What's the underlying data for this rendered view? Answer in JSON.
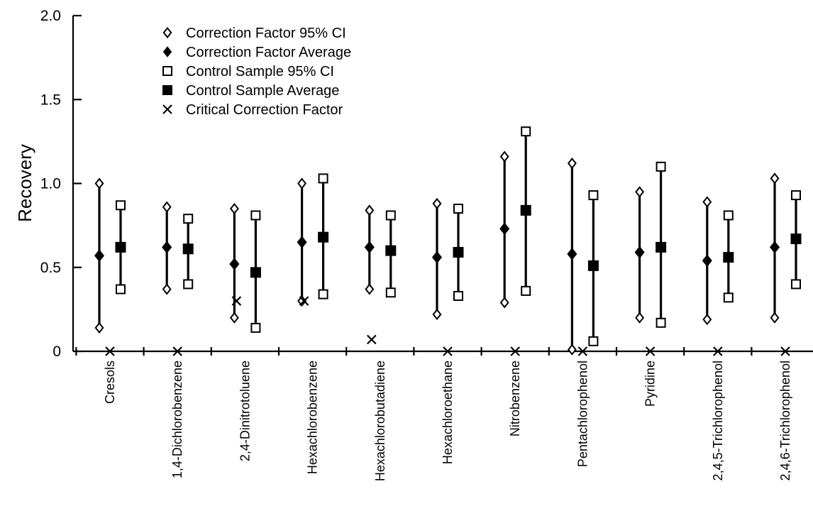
{
  "chart_data": {
    "type": "scatter",
    "title": "",
    "xlabel": "",
    "ylabel": "Recovery",
    "ylim": [
      0,
      2.0
    ],
    "yticks": [
      0,
      0.5,
      1.0,
      1.5,
      2.0
    ],
    "ytick_labels": [
      "0",
      "0.5",
      "1.0",
      "1.5",
      "2.0"
    ],
    "grid": false,
    "legend_position": "top-left",
    "categories": [
      "Cresols",
      "1,4-Dichlorobenzene",
      "2,4-Dinitrotoluene",
      "Hexachlorobenzene",
      "Hexachlorobutadiene",
      "Hexachloroethane",
      "Nitrobenzene",
      "Pentachlorophenol",
      "Pyridine",
      "2,4,5-Trichlorophenol",
      "2,4,6-Trichlorophenol"
    ],
    "series": [
      {
        "name": "Correction Factor 95% CI",
        "marker": "open-diamond",
        "lower": [
          0.14,
          0.37,
          0.2,
          0.3,
          0.37,
          0.22,
          0.29,
          0.01,
          0.2,
          0.19,
          0.2
        ],
        "upper": [
          1.0,
          0.86,
          0.85,
          1.0,
          0.84,
          0.88,
          1.16,
          1.12,
          0.95,
          0.89,
          1.03
        ]
      },
      {
        "name": "Correction Factor Average",
        "marker": "filled-diamond",
        "values": [
          0.57,
          0.62,
          0.52,
          0.65,
          0.62,
          0.56,
          0.73,
          0.58,
          0.59,
          0.54,
          0.62
        ]
      },
      {
        "name": "Control Sample 95% CI",
        "marker": "open-square",
        "lower": [
          0.37,
          0.4,
          0.14,
          0.34,
          0.35,
          0.33,
          0.36,
          0.06,
          0.17,
          0.32,
          0.4
        ],
        "upper": [
          0.87,
          0.79,
          0.81,
          1.03,
          0.81,
          0.85,
          1.31,
          0.93,
          1.1,
          0.81,
          0.93
        ]
      },
      {
        "name": "Control Sample Average",
        "marker": "filled-square",
        "values": [
          0.62,
          0.61,
          0.47,
          0.68,
          0.6,
          0.59,
          0.84,
          0.51,
          0.62,
          0.56,
          0.67
        ]
      },
      {
        "name": "Critical Correction Factor",
        "marker": "x",
        "values": [
          0.0,
          0.0,
          0.3,
          0.3,
          0.07,
          0.0,
          0.0,
          0.0,
          0.0,
          0.0,
          0.0
        ]
      }
    ]
  }
}
